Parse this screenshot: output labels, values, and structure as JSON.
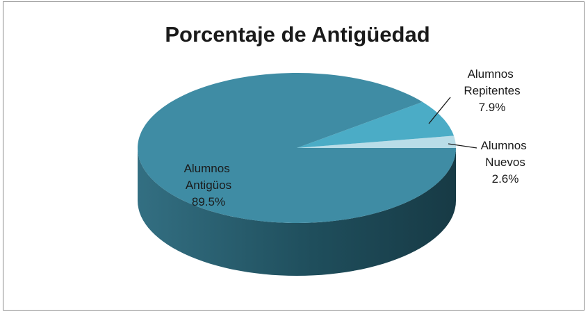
{
  "chart_data": {
    "type": "pie3d",
    "title": "Porcentaje de Antigüedad",
    "categories": [
      "Alumnos Nuevos",
      "Alumnos Repitentes",
      "Alumnos Antigüos"
    ],
    "values": [
      2.6,
      7.9,
      89.5
    ],
    "value_labels": [
      "2.6%",
      "7.9%",
      "89.5%"
    ],
    "colors": [
      "#b9dde8",
      "#4bacc6",
      "#3f8ca4"
    ]
  }
}
